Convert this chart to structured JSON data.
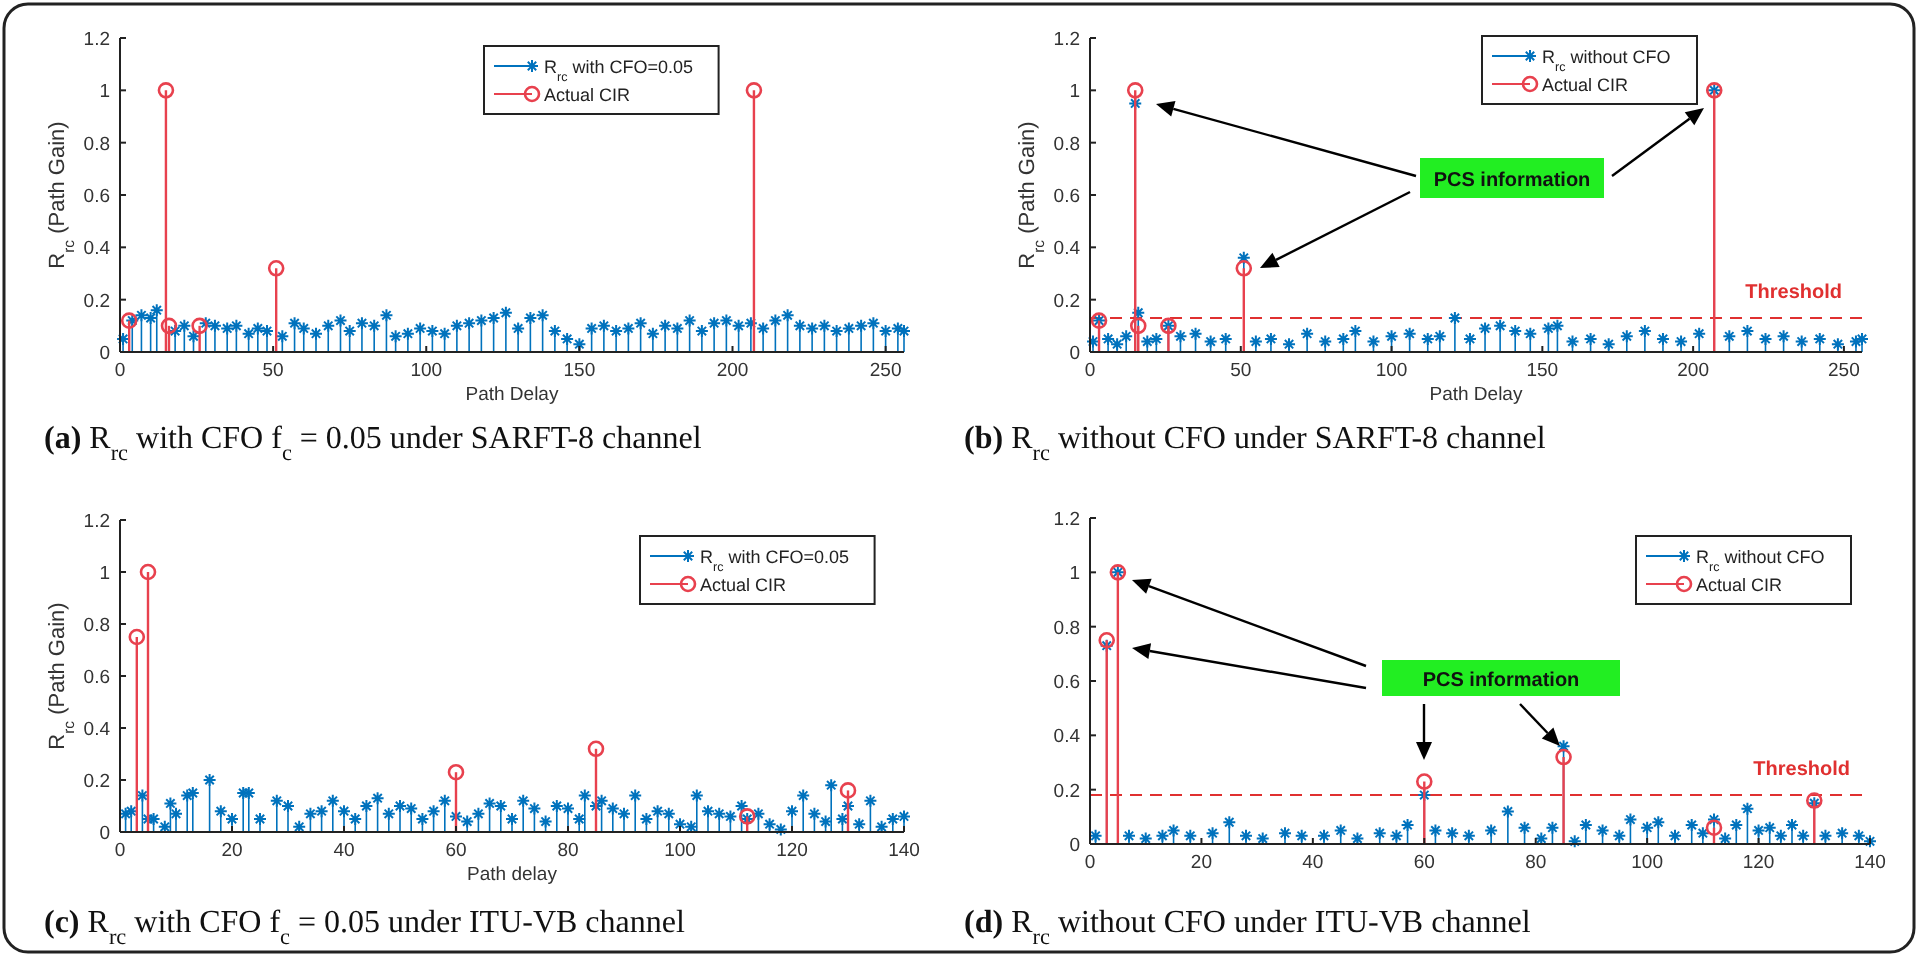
{
  "chart_data": [
    {
      "type": "lollipop",
      "title": "(a) R$_{rc}$ with CFO f$_{c}$ = 0.05 under SARFT-8 channel",
      "xlabel": "Path Delay",
      "ylabel": "R$_{rc}$ (Path Gain)",
      "xlim": [
        0,
        256
      ],
      "xticks": [
        0,
        50,
        100,
        150,
        200,
        250
      ],
      "ylim": [
        0,
        1.2
      ],
      "yticks": [
        0,
        0.2,
        0.4,
        0.6,
        0.8,
        1,
        1.2
      ],
      "legend": "top right",
      "series": [
        {
          "name": "R$_{rc}$ with CFO=0.05",
          "color": "#0072bd",
          "marker": "cross",
          "x": [
            1,
            4,
            7,
            10,
            12,
            18,
            21,
            24,
            28,
            31,
            35,
            38,
            42,
            45,
            48,
            53,
            57,
            60,
            64,
            68,
            72,
            75,
            79,
            83,
            87,
            90,
            94,
            98,
            102,
            106,
            110,
            114,
            118,
            122,
            126,
            130,
            134,
            138,
            142,
            146,
            150,
            154,
            158,
            162,
            166,
            170,
            174,
            178,
            182,
            186,
            190,
            194,
            198,
            202,
            206,
            210,
            214,
            218,
            222,
            226,
            230,
            234,
            238,
            242,
            246,
            250,
            254,
            256
          ],
          "values": [
            0.05,
            0.12,
            0.14,
            0.13,
            0.16,
            0.08,
            0.1,
            0.06,
            0.11,
            0.1,
            0.09,
            0.1,
            0.07,
            0.09,
            0.08,
            0.06,
            0.11,
            0.09,
            0.07,
            0.1,
            0.12,
            0.08,
            0.11,
            0.1,
            0.14,
            0.06,
            0.07,
            0.09,
            0.08,
            0.07,
            0.1,
            0.11,
            0.12,
            0.13,
            0.15,
            0.09,
            0.13,
            0.14,
            0.08,
            0.05,
            0.03,
            0.09,
            0.1,
            0.08,
            0.09,
            0.11,
            0.07,
            0.1,
            0.09,
            0.12,
            0.08,
            0.11,
            0.12,
            0.1,
            0.11,
            0.09,
            0.12,
            0.14,
            0.1,
            0.09,
            0.1,
            0.08,
            0.09,
            0.1,
            0.11,
            0.08,
            0.09,
            0.08
          ]
        },
        {
          "name": "Actual CIR",
          "color": "#e8414e",
          "marker": "circle",
          "x": [
            3,
            15,
            16,
            26,
            51,
            207
          ],
          "values": [
            0.12,
            1,
            0.1,
            0.1,
            0.32,
            1
          ]
        }
      ]
    },
    {
      "type": "lollipop",
      "title": "(b) R$_{rc}$ without CFO under SARFT-8 channel",
      "xlabel": "Path Delay",
      "ylabel": "R$_{rc}$ (Path Gain)",
      "xlim": [
        0,
        256
      ],
      "xticks": [
        0,
        50,
        100,
        150,
        200,
        250
      ],
      "ylim": [
        0,
        1.2
      ],
      "yticks": [
        0,
        0.2,
        0.4,
        0.6,
        0.8,
        1,
        1.2
      ],
      "legend": "top right",
      "annotations": [
        "PCS information"
      ],
      "ref_lines": [
        {
          "axis": "y",
          "value": 0.13,
          "label": "Threshold",
          "color": "#e03030",
          "line_style": "dashed"
        }
      ],
      "series": [
        {
          "name": "R$_{rc}$ without CFO",
          "color": "#0072bd",
          "marker": "cross",
          "x": [
            1,
            3,
            6,
            9,
            12,
            15,
            16,
            19,
            22,
            26,
            30,
            35,
            40,
            45,
            51,
            55,
            60,
            66,
            72,
            78,
            84,
            88,
            94,
            100,
            106,
            112,
            116,
            121,
            126,
            131,
            136,
            141,
            146,
            152,
            155,
            160,
            166,
            172,
            178,
            184,
            190,
            196,
            202,
            207,
            212,
            218,
            224,
            230,
            236,
            242,
            248,
            254,
            256
          ],
          "values": [
            0.04,
            0.12,
            0.05,
            0.03,
            0.06,
            0.95,
            0.15,
            0.04,
            0.05,
            0.1,
            0.06,
            0.07,
            0.04,
            0.05,
            0.36,
            0.04,
            0.05,
            0.03,
            0.07,
            0.04,
            0.05,
            0.08,
            0.04,
            0.06,
            0.07,
            0.05,
            0.06,
            0.13,
            0.05,
            0.09,
            0.1,
            0.08,
            0.07,
            0.09,
            0.1,
            0.04,
            0.05,
            0.03,
            0.06,
            0.08,
            0.05,
            0.04,
            0.07,
            1.0,
            0.06,
            0.08,
            0.05,
            0.06,
            0.04,
            0.05,
            0.03,
            0.04,
            0.05
          ]
        },
        {
          "name": "Actual CIR",
          "color": "#e8414e",
          "marker": "circle",
          "x": [
            3,
            15,
            16,
            26,
            51,
            207
          ],
          "values": [
            0.12,
            1,
            0.1,
            0.1,
            0.32,
            1
          ]
        }
      ]
    },
    {
      "type": "lollipop",
      "title": "(c) R$_{rc}$ with CFO f$_{c}$ = 0.05 under ITU-VB channel",
      "xlabel": "Path delay",
      "ylabel": "R$_{rc}$ (Path Gain)",
      "xlim": [
        0,
        140
      ],
      "xticks": [
        0,
        20,
        40,
        60,
        80,
        100,
        120,
        140
      ],
      "ylim": [
        0,
        1.2
      ],
      "yticks": [
        0,
        0.2,
        0.4,
        0.6,
        0.8,
        1,
        1.2
      ],
      "legend": "top right",
      "series": [
        {
          "name": "R$_{rc}$ with CFO=0.05",
          "color": "#0072bd",
          "marker": "cross",
          "x": [
            1,
            2,
            4,
            5,
            6,
            8,
            9,
            10,
            12,
            13,
            16,
            18,
            20,
            22,
            23,
            25,
            28,
            30,
            32,
            34,
            36,
            38,
            40,
            42,
            44,
            46,
            48,
            50,
            52,
            54,
            56,
            58,
            60,
            62,
            64,
            66,
            68,
            70,
            72,
            74,
            76,
            78,
            80,
            82,
            83,
            85,
            86,
            88,
            90,
            92,
            94,
            96,
            98,
            100,
            102,
            103,
            105,
            107,
            109,
            111,
            112,
            114,
            116,
            118,
            120,
            122,
            124,
            126,
            127,
            129,
            130,
            132,
            134,
            136,
            138,
            140
          ],
          "values": [
            0.07,
            0.08,
            0.14,
            0.05,
            0.05,
            0.02,
            0.11,
            0.07,
            0.14,
            0.15,
            0.2,
            0.08,
            0.05,
            0.15,
            0.15,
            0.05,
            0.12,
            0.1,
            0.02,
            0.07,
            0.08,
            0.12,
            0.08,
            0.05,
            0.1,
            0.13,
            0.07,
            0.1,
            0.09,
            0.05,
            0.08,
            0.12,
            0.06,
            0.04,
            0.07,
            0.11,
            0.1,
            0.05,
            0.12,
            0.09,
            0.04,
            0.1,
            0.09,
            0.05,
            0.14,
            0.1,
            0.12,
            0.09,
            0.07,
            0.14,
            0.05,
            0.08,
            0.07,
            0.03,
            0.02,
            0.14,
            0.08,
            0.07,
            0.06,
            0.1,
            0.05,
            0.07,
            0.03,
            0.01,
            0.08,
            0.14,
            0.07,
            0.04,
            0.18,
            0.05,
            0.1,
            0.03,
            0.12,
            0.02,
            0.05,
            0.06
          ]
        },
        {
          "name": "Actual CIR",
          "color": "#e8414e",
          "marker": "circle",
          "x": [
            3,
            5,
            60,
            85,
            112,
            130
          ],
          "values": [
            0.75,
            1,
            0.23,
            0.32,
            0.06,
            0.16
          ]
        }
      ]
    },
    {
      "type": "lollipop",
      "title": "(d) R$_{rc}$ without CFO under ITU-VB channel",
      "xlim": [
        0,
        140
      ],
      "xticks": [
        0,
        20,
        40,
        60,
        80,
        100,
        120,
        140
      ],
      "ylim": [
        0,
        1.2
      ],
      "yticks": [
        0,
        0.2,
        0.4,
        0.6,
        0.8,
        1,
        1.2
      ],
      "legend": "top right",
      "annotations": [
        "PCS information"
      ],
      "ref_lines": [
        {
          "axis": "y",
          "value": 0.18,
          "label": "Threshold",
          "color": "#e03030",
          "line_style": "dashed"
        }
      ],
      "series": [
        {
          "name": "R$_{rc}$ without CFO",
          "color": "#0072bd",
          "marker": "cross",
          "x": [
            1,
            3,
            5,
            7,
            10,
            13,
            15,
            18,
            22,
            25,
            28,
            31,
            35,
            38,
            42,
            45,
            48,
            52,
            55,
            57,
            60,
            62,
            65,
            68,
            72,
            75,
            78,
            81,
            83,
            85,
            87,
            89,
            92,
            95,
            97,
            100,
            102,
            105,
            108,
            110,
            112,
            114,
            116,
            118,
            120,
            122,
            124,
            126,
            128,
            130,
            132,
            135,
            138,
            140
          ],
          "values": [
            0.03,
            0.73,
            1.0,
            0.03,
            0.02,
            0.03,
            0.05,
            0.03,
            0.04,
            0.08,
            0.03,
            0.02,
            0.04,
            0.03,
            0.03,
            0.05,
            0.02,
            0.04,
            0.03,
            0.07,
            0.18,
            0.05,
            0.04,
            0.03,
            0.05,
            0.12,
            0.06,
            0.02,
            0.06,
            0.36,
            0.01,
            0.07,
            0.05,
            0.03,
            0.09,
            0.06,
            0.08,
            0.03,
            0.07,
            0.04,
            0.09,
            0.02,
            0.07,
            0.13,
            0.05,
            0.06,
            0.03,
            0.07,
            0.03,
            0.15,
            0.03,
            0.04,
            0.03,
            0.01
          ]
        },
        {
          "name": "Actual CIR",
          "color": "#e8414e",
          "marker": "circle",
          "x": [
            3,
            5,
            60,
            85,
            112,
            130
          ],
          "values": [
            0.75,
            1,
            0.23,
            0.32,
            0.06,
            0.16
          ]
        }
      ]
    }
  ]
}
